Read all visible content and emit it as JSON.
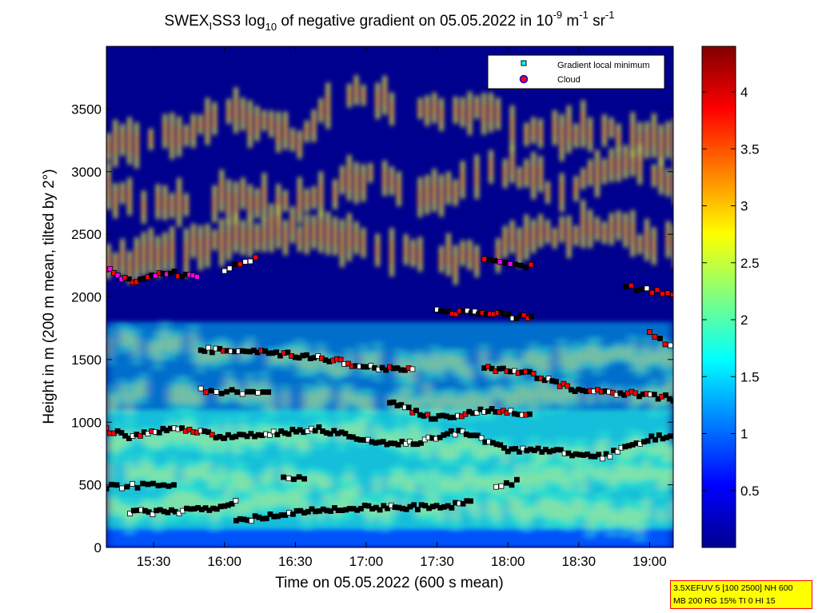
{
  "chart_data": {
    "type": "heatmap",
    "title": {
      "prefix": "SWEX",
      "sub1": "I",
      "mid": "SS3 log",
      "sub2": "10",
      "main": " of negative gradient on 05.05.2022 in 10",
      "sup1": "-9",
      "unit1": " m",
      "sup2": "-1",
      "unit2": " sr",
      "sup3": "-1"
    },
    "xlabel": "Time on 05.05.2022 (600 s mean)",
    "ylabel": "Height in m (200 m mean, tilted by 2°)",
    "xlim": [
      "15:10",
      "19:10"
    ],
    "ylim": [
      0,
      4000
    ],
    "x_ticks": [
      "15:30",
      "16:00",
      "16:30",
      "17:00",
      "17:30",
      "18:00",
      "18:30",
      "19:00"
    ],
    "y_ticks": [
      0,
      500,
      1000,
      1500,
      2000,
      2500,
      3000,
      3500
    ],
    "colorbar": {
      "range": [
        0,
        4.4
      ],
      "ticks": [
        0.5,
        1,
        1.5,
        2,
        2.5,
        3,
        3.5,
        4
      ]
    },
    "legend": {
      "placement": "top-right",
      "entries": [
        {
          "name": "Gradient local minimum",
          "color": "#00ffff",
          "marker": "square"
        },
        {
          "name": "Cloud",
          "color": "#ff0000",
          "marker": "circle"
        }
      ]
    },
    "features": {
      "upper_layers": [
        {
          "x": [
            "15:10",
            "15:45",
            "16:00",
            "16:30",
            "16:55",
            "17:20",
            "17:45",
            "18:10",
            "18:40",
            "19:10"
          ],
          "y": [
            3200,
            3350,
            3500,
            3250,
            3700,
            3450,
            3500,
            3300,
            3350,
            3250
          ]
        },
        {
          "x": [
            "15:10",
            "15:30",
            "16:00",
            "16:30",
            "17:00",
            "17:30",
            "18:00",
            "18:20",
            "18:50",
            "19:10"
          ],
          "y": [
            2850,
            2700,
            2800,
            2750,
            2950,
            2800,
            3050,
            2850,
            3100,
            2900
          ]
        },
        {
          "x": [
            "15:10",
            "15:30",
            "15:55",
            "16:20",
            "16:50",
            "17:15",
            "17:40",
            "18:05",
            "18:40",
            "19:10"
          ],
          "y": [
            2250,
            2350,
            2450,
            2550,
            2450,
            2350,
            2300,
            2450,
            2550,
            2400
          ]
        }
      ],
      "lower_layers": [
        {
          "x": [
            "15:10",
            "16:00",
            "17:00",
            "18:00",
            "19:10"
          ],
          "y": [
            1650,
            1550,
            1450,
            1450,
            1550
          ]
        },
        {
          "x": [
            "15:10",
            "16:00",
            "17:00",
            "18:00",
            "19:10"
          ],
          "y": [
            1200,
            1250,
            1150,
            1200,
            1250
          ]
        },
        {
          "x": [
            "15:10",
            "15:40",
            "16:10",
            "17:00",
            "17:40",
            "18:20",
            "19:10"
          ],
          "y": [
            800,
            900,
            850,
            900,
            800,
            750,
            800
          ]
        },
        {
          "x": [
            "15:10",
            "16:00",
            "17:00",
            "18:00",
            "19:10"
          ],
          "y": [
            600,
            550,
            500,
            550,
            600
          ]
        },
        {
          "x": [
            "15:10",
            "16:00",
            "17:00",
            "18:00",
            "19:10"
          ],
          "y": [
            300,
            350,
            330,
            300,
            250
          ]
        }
      ],
      "minima_tracks": [
        {
          "x": [
            "15:10",
            "15:20",
            "15:30",
            "15:45",
            "16:00"
          ],
          "y": [
            940,
            880,
            930,
            950,
            870
          ],
          "flag": "cloud_partial"
        },
        {
          "x": [
            "16:00",
            "16:20",
            "16:40",
            "17:00",
            "17:20",
            "17:40",
            "18:00",
            "18:20",
            "18:40",
            "19:00",
            "19:10"
          ],
          "y": [
            890,
            910,
            950,
            850,
            830,
            930,
            780,
            770,
            720,
            870,
            900
          ],
          "flag": "none"
        },
        {
          "x": [
            "15:10",
            "15:25",
            "15:40"
          ],
          "y": [
            480,
            495,
            510
          ],
          "flag": "none"
        },
        {
          "x": [
            "15:20",
            "15:40",
            "15:55",
            "16:05"
          ],
          "y": [
            280,
            285,
            310,
            380
          ],
          "flag": "none"
        },
        {
          "x": [
            "16:05",
            "16:30",
            "17:00",
            "17:30",
            "17:45"
          ],
          "y": [
            210,
            280,
            320,
            320,
            360
          ],
          "flag": "none"
        },
        {
          "x": [
            "16:25",
            "16:35"
          ],
          "y": [
            560,
            540
          ],
          "flag": "none"
        },
        {
          "x": [
            "17:55",
            "18:05"
          ],
          "y": [
            490,
            530
          ],
          "flag": "none"
        },
        {
          "x": [
            "15:10",
            "15:20",
            "15:35",
            "15:50"
          ],
          "y": [
            2230,
            2120,
            2200,
            2150
          ],
          "flag": "mixed_magenta"
        },
        {
          "x": [
            "16:00",
            "16:15"
          ],
          "y": [
            2220,
            2320
          ],
          "flag": "cloud_partial"
        },
        {
          "x": [
            "15:50",
            "16:10",
            "16:40",
            "17:00",
            "17:20"
          ],
          "y": [
            1580,
            1560,
            1520,
            1440,
            1420
          ],
          "flag": "cloud_partial"
        },
        {
          "x": [
            "17:30",
            "17:50",
            "18:10"
          ],
          "y": [
            1890,
            1870,
            1830
          ],
          "flag": "cloud_partial"
        },
        {
          "x": [
            "17:50",
            "18:10",
            "18:30",
            "18:50",
            "19:10"
          ],
          "y": [
            1430,
            1380,
            1250,
            1230,
            1190
          ],
          "flag": "cloud_partial"
        },
        {
          "x": [
            "15:50",
            "16:10",
            "16:20"
          ],
          "y": [
            1250,
            1240,
            1230
          ],
          "flag": "cloud_partial"
        },
        {
          "x": [
            "17:10",
            "17:30",
            "17:50",
            "18:10"
          ],
          "y": [
            1150,
            1030,
            1100,
            1060
          ],
          "flag": "cloud_partial"
        },
        {
          "x": [
            "17:50",
            "18:00",
            "18:10"
          ],
          "y": [
            2320,
            2280,
            2240
          ],
          "flag": "mixed_magenta"
        },
        {
          "x": [
            "18:50",
            "19:00",
            "19:10"
          ],
          "y": [
            2080,
            2050,
            2010
          ],
          "flag": "cloud_partial"
        },
        {
          "x": [
            "19:00",
            "19:10"
          ],
          "y": [
            1700,
            1600
          ],
          "flag": "cloud_partial"
        }
      ]
    }
  },
  "info_box": {
    "line1": "3.5XEFUV 5 [100 2500] NH 600",
    "line2": "MB 200 RG 15% TI 0 HI 15"
  },
  "colors": {
    "background": "#ffffff",
    "minimum_marker": "#00ffff",
    "cloud_marker": "#ff0000",
    "info_box_bg": "#ffff00",
    "info_box_border": "#ff0000"
  }
}
